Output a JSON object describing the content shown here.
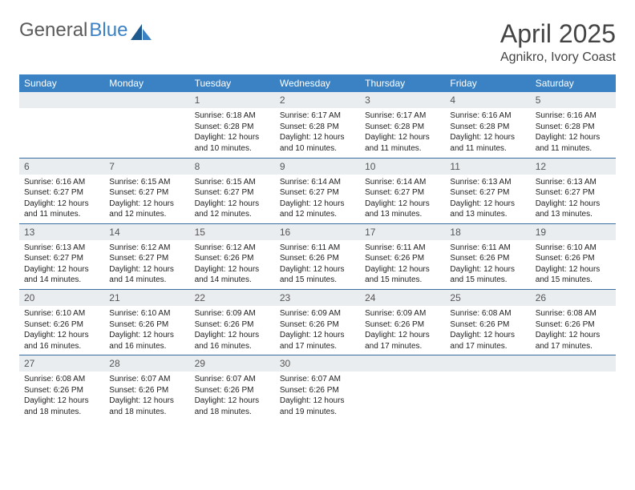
{
  "brand": {
    "part1": "General",
    "part2": "Blue"
  },
  "title": "April 2025",
  "location": "Agnikro, Ivory Coast",
  "colors": {
    "header_bg": "#3b82c4",
    "header_text": "#ffffff",
    "daynum_bg": "#e9edf0",
    "row_divider": "#3b6ea0",
    "logo_gray": "#5a5a5a",
    "logo_blue": "#3b82c4"
  },
  "weekdays": [
    "Sunday",
    "Monday",
    "Tuesday",
    "Wednesday",
    "Thursday",
    "Friday",
    "Saturday"
  ],
  "weeks": [
    [
      null,
      null,
      {
        "n": "1",
        "sunrise": "6:18 AM",
        "sunset": "6:28 PM",
        "daylight": "12 hours and 10 minutes."
      },
      {
        "n": "2",
        "sunrise": "6:17 AM",
        "sunset": "6:28 PM",
        "daylight": "12 hours and 10 minutes."
      },
      {
        "n": "3",
        "sunrise": "6:17 AM",
        "sunset": "6:28 PM",
        "daylight": "12 hours and 11 minutes."
      },
      {
        "n": "4",
        "sunrise": "6:16 AM",
        "sunset": "6:28 PM",
        "daylight": "12 hours and 11 minutes."
      },
      {
        "n": "5",
        "sunrise": "6:16 AM",
        "sunset": "6:28 PM",
        "daylight": "12 hours and 11 minutes."
      }
    ],
    [
      {
        "n": "6",
        "sunrise": "6:16 AM",
        "sunset": "6:27 PM",
        "daylight": "12 hours and 11 minutes."
      },
      {
        "n": "7",
        "sunrise": "6:15 AM",
        "sunset": "6:27 PM",
        "daylight": "12 hours and 12 minutes."
      },
      {
        "n": "8",
        "sunrise": "6:15 AM",
        "sunset": "6:27 PM",
        "daylight": "12 hours and 12 minutes."
      },
      {
        "n": "9",
        "sunrise": "6:14 AM",
        "sunset": "6:27 PM",
        "daylight": "12 hours and 12 minutes."
      },
      {
        "n": "10",
        "sunrise": "6:14 AM",
        "sunset": "6:27 PM",
        "daylight": "12 hours and 13 minutes."
      },
      {
        "n": "11",
        "sunrise": "6:13 AM",
        "sunset": "6:27 PM",
        "daylight": "12 hours and 13 minutes."
      },
      {
        "n": "12",
        "sunrise": "6:13 AM",
        "sunset": "6:27 PM",
        "daylight": "12 hours and 13 minutes."
      }
    ],
    [
      {
        "n": "13",
        "sunrise": "6:13 AM",
        "sunset": "6:27 PM",
        "daylight": "12 hours and 14 minutes."
      },
      {
        "n": "14",
        "sunrise": "6:12 AM",
        "sunset": "6:27 PM",
        "daylight": "12 hours and 14 minutes."
      },
      {
        "n": "15",
        "sunrise": "6:12 AM",
        "sunset": "6:26 PM",
        "daylight": "12 hours and 14 minutes."
      },
      {
        "n": "16",
        "sunrise": "6:11 AM",
        "sunset": "6:26 PM",
        "daylight": "12 hours and 15 minutes."
      },
      {
        "n": "17",
        "sunrise": "6:11 AM",
        "sunset": "6:26 PM",
        "daylight": "12 hours and 15 minutes."
      },
      {
        "n": "18",
        "sunrise": "6:11 AM",
        "sunset": "6:26 PM",
        "daylight": "12 hours and 15 minutes."
      },
      {
        "n": "19",
        "sunrise": "6:10 AM",
        "sunset": "6:26 PM",
        "daylight": "12 hours and 15 minutes."
      }
    ],
    [
      {
        "n": "20",
        "sunrise": "6:10 AM",
        "sunset": "6:26 PM",
        "daylight": "12 hours and 16 minutes."
      },
      {
        "n": "21",
        "sunrise": "6:10 AM",
        "sunset": "6:26 PM",
        "daylight": "12 hours and 16 minutes."
      },
      {
        "n": "22",
        "sunrise": "6:09 AM",
        "sunset": "6:26 PM",
        "daylight": "12 hours and 16 minutes."
      },
      {
        "n": "23",
        "sunrise": "6:09 AM",
        "sunset": "6:26 PM",
        "daylight": "12 hours and 17 minutes."
      },
      {
        "n": "24",
        "sunrise": "6:09 AM",
        "sunset": "6:26 PM",
        "daylight": "12 hours and 17 minutes."
      },
      {
        "n": "25",
        "sunrise": "6:08 AM",
        "sunset": "6:26 PM",
        "daylight": "12 hours and 17 minutes."
      },
      {
        "n": "26",
        "sunrise": "6:08 AM",
        "sunset": "6:26 PM",
        "daylight": "12 hours and 17 minutes."
      }
    ],
    [
      {
        "n": "27",
        "sunrise": "6:08 AM",
        "sunset": "6:26 PM",
        "daylight": "12 hours and 18 minutes."
      },
      {
        "n": "28",
        "sunrise": "6:07 AM",
        "sunset": "6:26 PM",
        "daylight": "12 hours and 18 minutes."
      },
      {
        "n": "29",
        "sunrise": "6:07 AM",
        "sunset": "6:26 PM",
        "daylight": "12 hours and 18 minutes."
      },
      {
        "n": "30",
        "sunrise": "6:07 AM",
        "sunset": "6:26 PM",
        "daylight": "12 hours and 19 minutes."
      },
      null,
      null,
      null
    ]
  ],
  "labels": {
    "sunrise": "Sunrise:",
    "sunset": "Sunset:",
    "daylight": "Daylight:"
  }
}
